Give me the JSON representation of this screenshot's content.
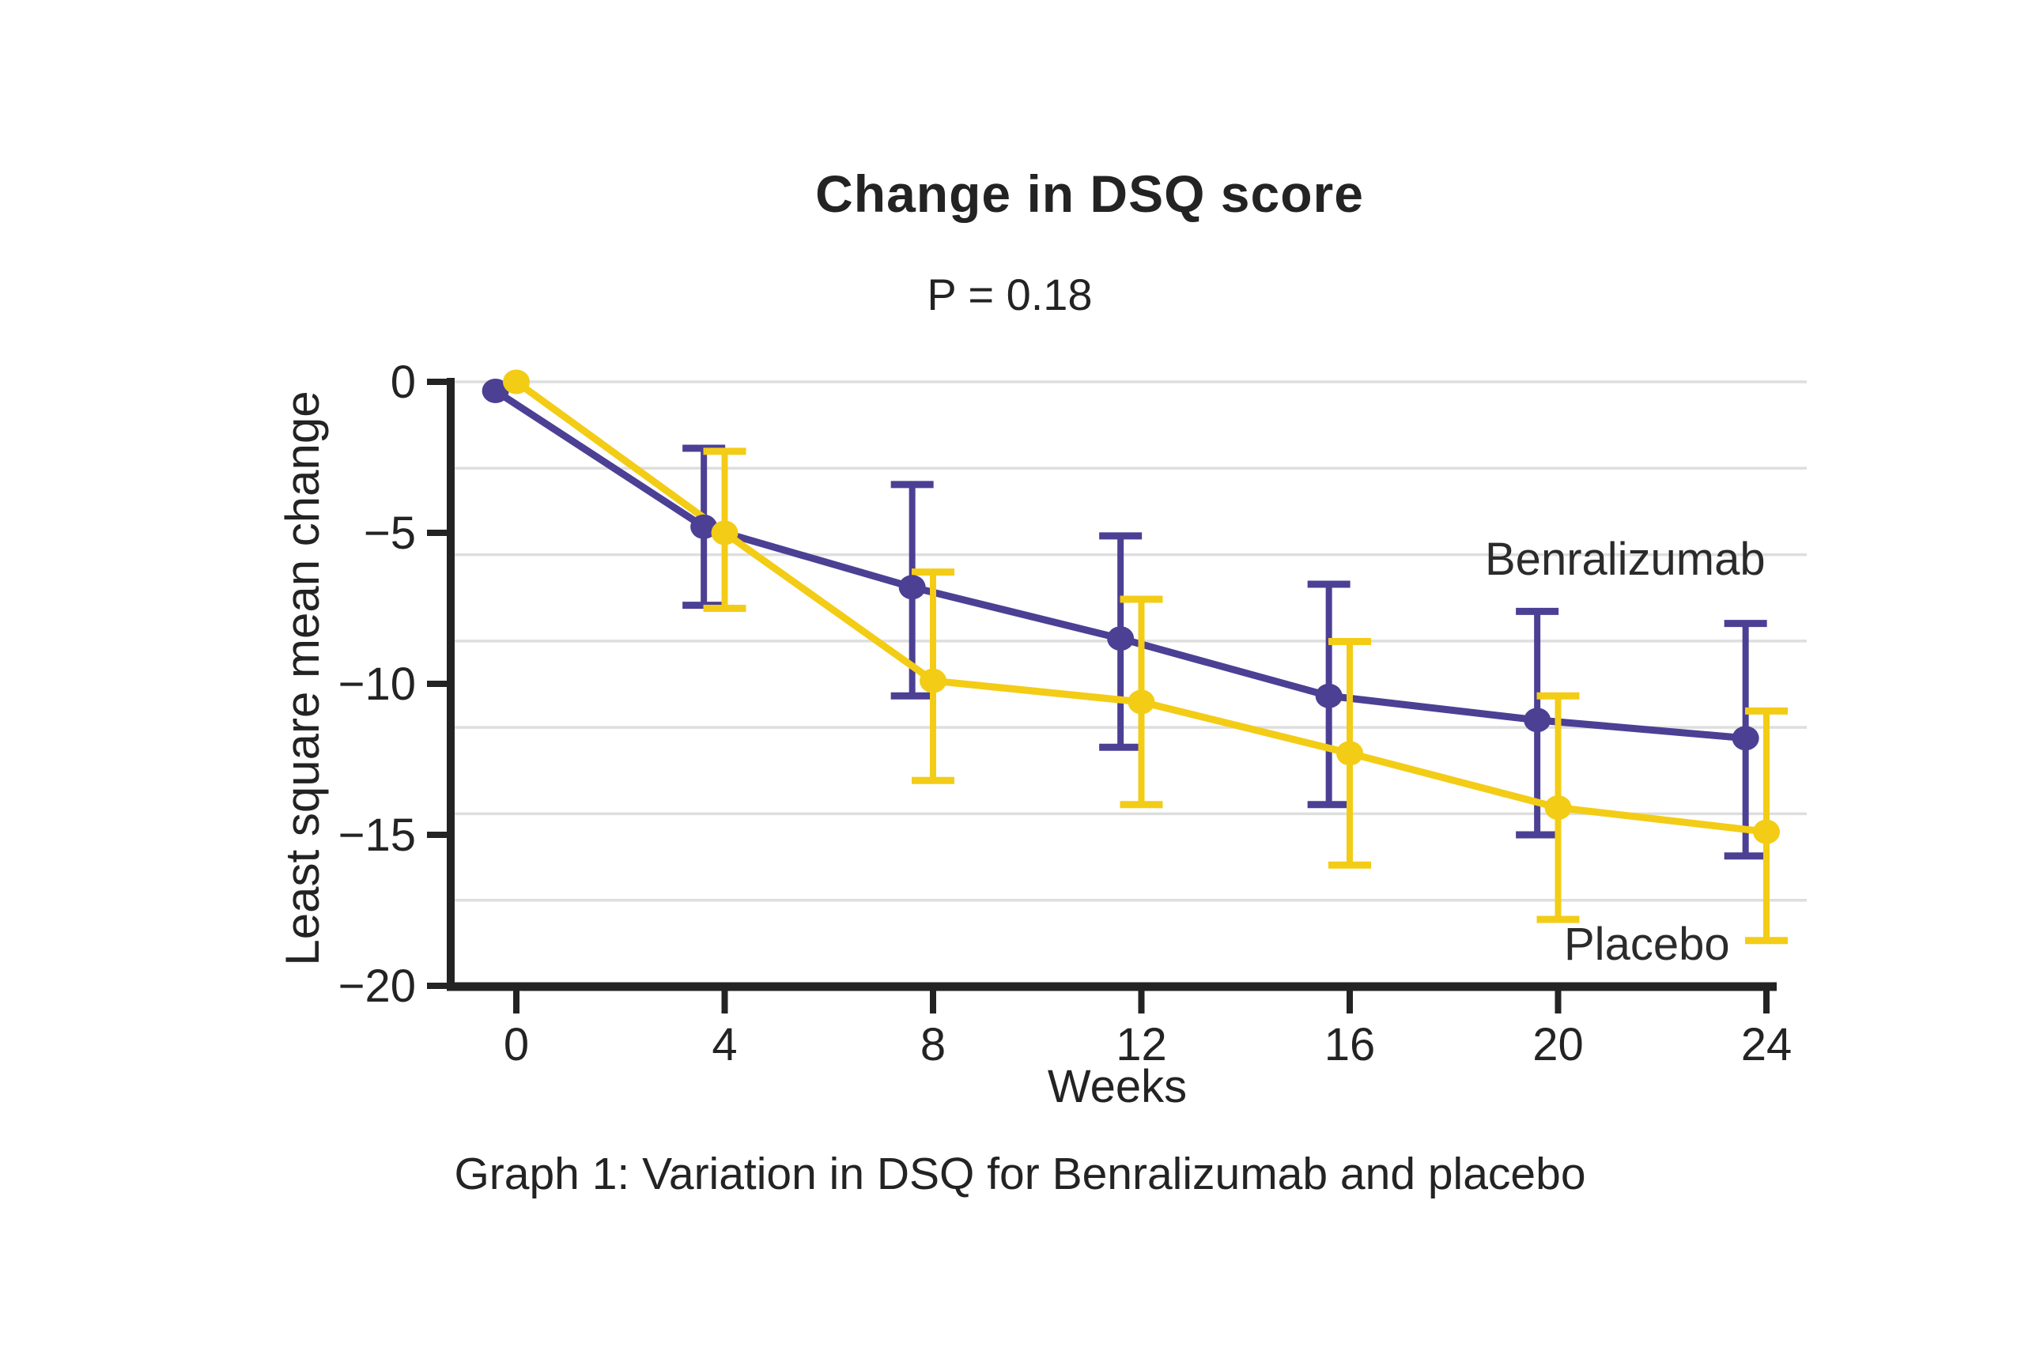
{
  "title": "Change in DSQ score",
  "subtitle": "P = 0.18",
  "caption": "Graph 1: Variation in DSQ for Benralizumab and placebo",
  "series_labels": {
    "benralizumab": "Benralizumab",
    "placebo": "Placebo"
  },
  "colors": {
    "benralizumab": "#4B4094",
    "placebo": "#F3CC16",
    "grid": "#DEDEDE",
    "axis": "#232323",
    "text": "#232323"
  },
  "chart_data": {
    "type": "line",
    "title": "Change in DSQ score",
    "subtitle": "P = 0.18",
    "xlabel": "Weeks",
    "ylabel": "Least square mean change",
    "x": [
      0,
      4,
      8,
      12,
      16,
      20,
      24
    ],
    "x_tick_labels": [
      "0",
      "4",
      "8",
      "12",
      "16",
      "20",
      "24"
    ],
    "y_ticks": [
      0,
      -5,
      -10,
      -15,
      -20
    ],
    "y_tick_labels": [
      "0",
      "−5",
      "−10",
      "−15",
      "−20"
    ],
    "ylim": [
      -20,
      0
    ],
    "xlim": [
      0,
      24
    ],
    "grid": "horizontal light-gray lines dividing plot into 7 equal bands",
    "legend_position": "inline labels at right of lines",
    "error_bars": "vertical with caps, both series, weeks 4-24",
    "series": [
      {
        "name": "Benralizumab",
        "color": "#4B4094",
        "x_offset_weeks": -0.4,
        "values": [
          -0.3,
          -4.8,
          -6.8,
          -8.5,
          -10.4,
          -11.2,
          -11.8
        ],
        "ci_upper": [
          null,
          -2.2,
          -3.4,
          -5.1,
          -6.7,
          -7.6,
          -8.0
        ],
        "ci_lower": [
          null,
          -7.4,
          -10.4,
          -12.1,
          -14.0,
          -15.0,
          -15.7
        ]
      },
      {
        "name": "Placebo",
        "color": "#F3CC16",
        "x_offset_weeks": 0,
        "values": [
          0,
          -5.0,
          -9.9,
          -10.6,
          -12.3,
          -14.1,
          -14.9
        ],
        "ci_upper": [
          null,
          -2.3,
          -6.3,
          -7.2,
          -8.6,
          -10.4,
          -10.9
        ],
        "ci_lower": [
          null,
          -7.5,
          -13.2,
          -14.0,
          -16.0,
          -17.8,
          -18.5
        ]
      }
    ]
  }
}
